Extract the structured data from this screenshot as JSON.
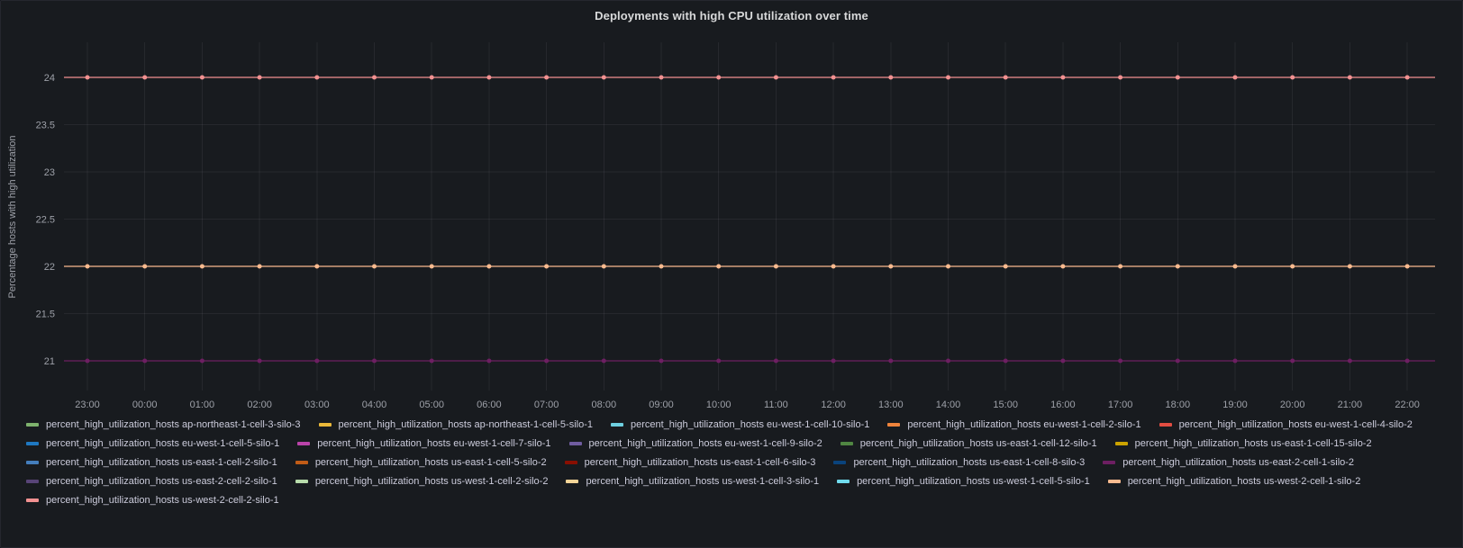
{
  "panel": {
    "title": "Deployments with high CPU utilization over time"
  },
  "chart_data": {
    "type": "line",
    "title": "Deployments with high CPU utilization over time",
    "xlabel": "",
    "ylabel": "Percentage hosts with high utilization",
    "x_ticks": [
      "23:00",
      "00:00",
      "01:00",
      "02:00",
      "03:00",
      "04:00",
      "05:00",
      "06:00",
      "07:00",
      "08:00",
      "09:00",
      "10:00",
      "11:00",
      "12:00",
      "13:00",
      "14:00",
      "15:00",
      "16:00",
      "17:00",
      "18:00",
      "19:00",
      "20:00",
      "21:00",
      "22:00"
    ],
    "y_ticks": [
      "24",
      "23.5",
      "23",
      "22.5",
      "22",
      "21.5",
      "21"
    ],
    "ylim": [
      20.7,
      24.35
    ],
    "grid": true,
    "legend_position": "bottom",
    "point_markers": true,
    "visible_lines": [
      {
        "value": 24,
        "color": "#F29191"
      },
      {
        "value": 22,
        "color": "#F9BA8F"
      },
      {
        "value": 21,
        "color": "#6D1F62"
      }
    ],
    "series": [
      {
        "name": "percent_high_utilization_hosts ap-northeast-1-cell-3-silo-3",
        "color": "#7EB26D"
      },
      {
        "name": "percent_high_utilization_hosts ap-northeast-1-cell-5-silo-1",
        "color": "#EAB839"
      },
      {
        "name": "percent_high_utilization_hosts eu-west-1-cell-10-silo-1",
        "color": "#6ED0E0"
      },
      {
        "name": "percent_high_utilization_hosts eu-west-1-cell-2-silo-1",
        "color": "#EF843C"
      },
      {
        "name": "percent_high_utilization_hosts eu-west-1-cell-4-silo-2",
        "color": "#E24D42"
      },
      {
        "name": "percent_high_utilization_hosts eu-west-1-cell-5-silo-1",
        "color": "#1F78C1"
      },
      {
        "name": "percent_high_utilization_hosts eu-west-1-cell-7-silo-1",
        "color": "#BA43A9"
      },
      {
        "name": "percent_high_utilization_hosts eu-west-1-cell-9-silo-2",
        "color": "#705DA0"
      },
      {
        "name": "percent_high_utilization_hosts us-east-1-cell-12-silo-1",
        "color": "#508642"
      },
      {
        "name": "percent_high_utilization_hosts us-east-1-cell-15-silo-2",
        "color": "#CCA300"
      },
      {
        "name": "percent_high_utilization_hosts us-east-1-cell-2-silo-1",
        "color": "#447EBC"
      },
      {
        "name": "percent_high_utilization_hosts us-east-1-cell-5-silo-2",
        "color": "#C15C17"
      },
      {
        "name": "percent_high_utilization_hosts us-east-1-cell-6-silo-3",
        "color": "#890F02"
      },
      {
        "name": "percent_high_utilization_hosts us-east-1-cell-8-silo-3",
        "color": "#0A437C"
      },
      {
        "name": "percent_high_utilization_hosts us-east-2-cell-1-silo-2",
        "color": "#6D1F62"
      },
      {
        "name": "percent_high_utilization_hosts us-east-2-cell-2-silo-1",
        "color": "#584477"
      },
      {
        "name": "percent_high_utilization_hosts us-west-1-cell-2-silo-2",
        "color": "#B7DBAB"
      },
      {
        "name": "percent_high_utilization_hosts us-west-1-cell-3-silo-1",
        "color": "#F4D598"
      },
      {
        "name": "percent_high_utilization_hosts us-west-1-cell-5-silo-1",
        "color": "#70DBED"
      },
      {
        "name": "percent_high_utilization_hosts us-west-2-cell-1-silo-2",
        "color": "#F9BA8F"
      },
      {
        "name": "percent_high_utilization_hosts us-west-2-cell-2-silo-1",
        "color": "#F29191"
      }
    ]
  }
}
